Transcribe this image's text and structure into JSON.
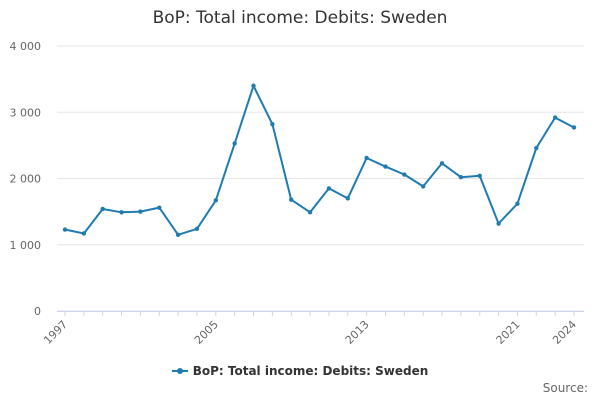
{
  "chart_data": {
    "type": "line",
    "title": "BoP: Total income: Debits: Sweden",
    "xlabel": "",
    "ylabel": "",
    "x": [
      1997,
      1998,
      1999,
      2000,
      2001,
      2002,
      2003,
      2004,
      2005,
      2006,
      2007,
      2008,
      2009,
      2010,
      2011,
      2012,
      2013,
      2014,
      2015,
      2016,
      2017,
      2018,
      2019,
      2020,
      2021,
      2022,
      2023,
      2024
    ],
    "series": [
      {
        "name": "BoP: Total income: Debits: Sweden",
        "values": [
          1230,
          1170,
          1540,
          1490,
          1500,
          1560,
          1150,
          1240,
          1670,
          2530,
          3400,
          2820,
          1680,
          1490,
          1850,
          1700,
          2310,
          2180,
          2060,
          1880,
          2230,
          2020,
          2040,
          1320,
          1620,
          2460,
          2920,
          2770
        ],
        "color": "#1f7bb0"
      }
    ],
    "xlim": [
      1997,
      2024
    ],
    "ylim": [
      0,
      4000
    ],
    "y_ticks": [
      0,
      1000,
      2000,
      3000,
      4000
    ],
    "y_tick_labels": [
      "0",
      "1 000",
      "2 000",
      "3 000",
      "4 000"
    ],
    "x_tick_labels": [
      "1997",
      "2005",
      "2013",
      "2021",
      "2024"
    ],
    "grid": true,
    "legend": "bottom-center"
  },
  "source_label": "Source:"
}
